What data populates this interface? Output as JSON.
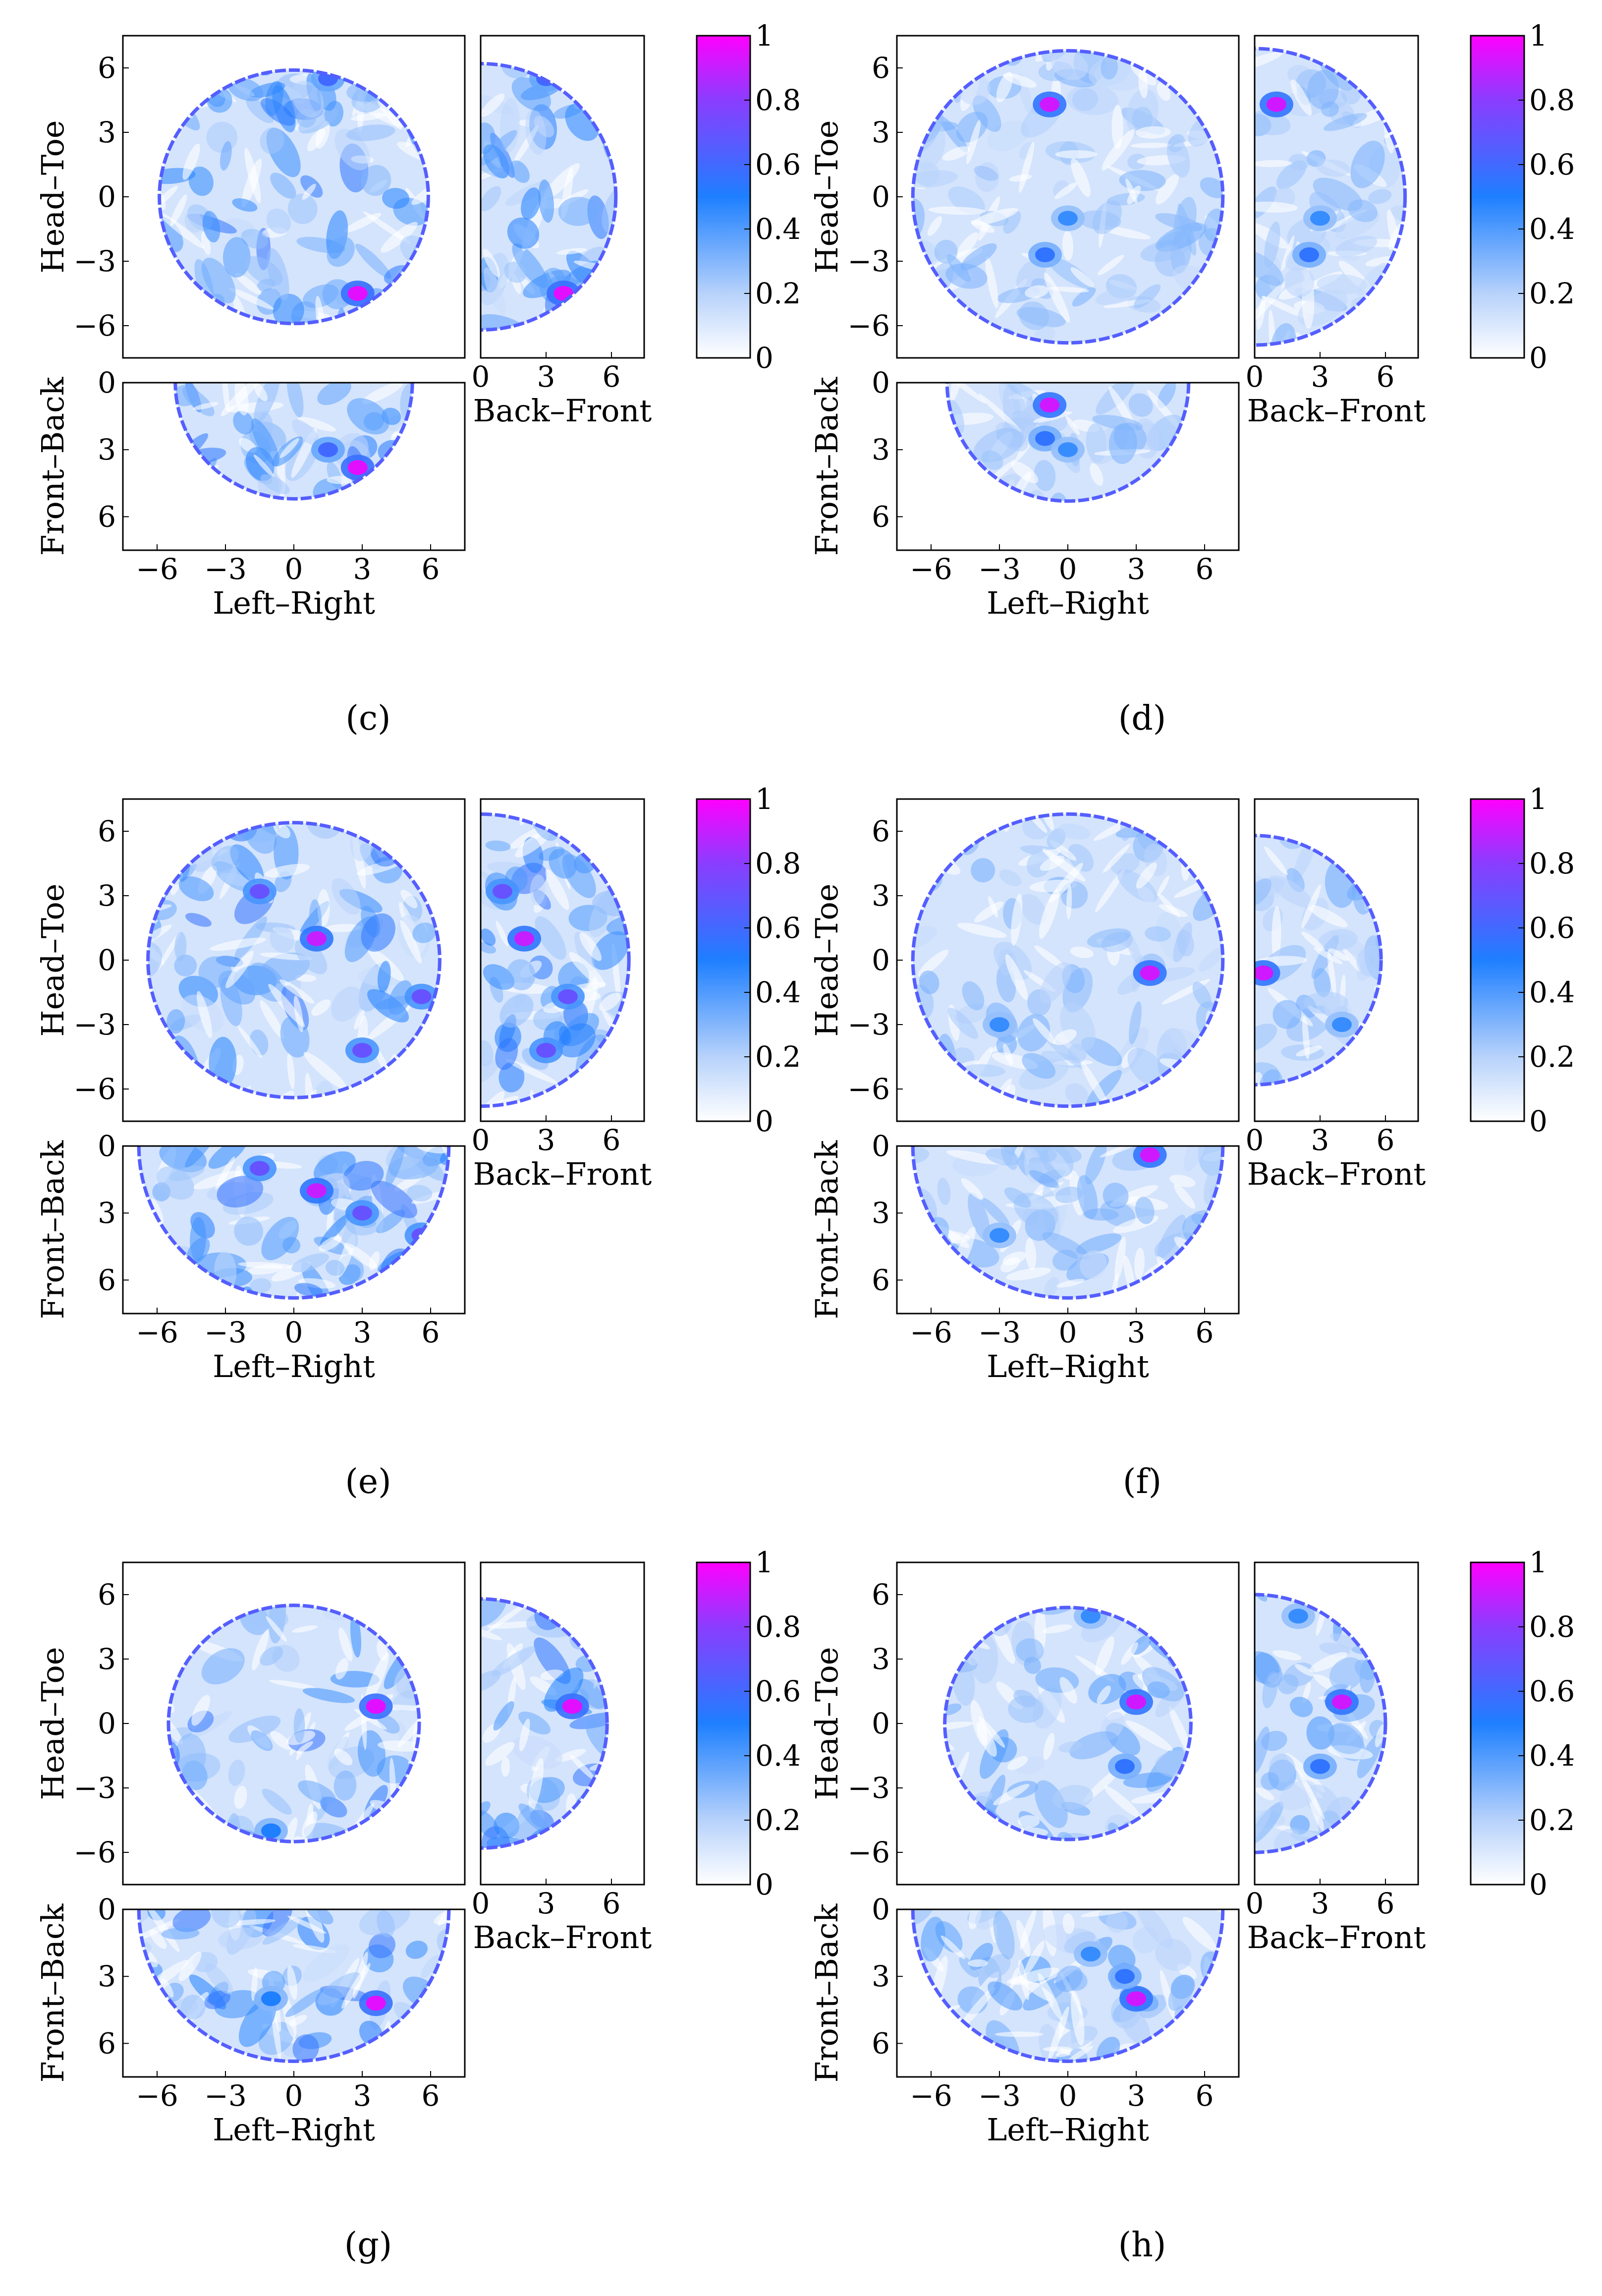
{
  "figure": {
    "colormap": {
      "stops": [
        {
          "v": 0.0,
          "color": "#ffffff"
        },
        {
          "v": 0.2,
          "color": "#b7d2fb"
        },
        {
          "v": 0.5,
          "color": "#1e7fff"
        },
        {
          "v": 0.8,
          "color": "#8a3dff"
        },
        {
          "v": 1.0,
          "color": "#ff00ff"
        }
      ],
      "ticks": [
        "0",
        "0.2",
        "0.4",
        "0.6",
        "0.8",
        "1"
      ]
    },
    "axis_labels": {
      "head_toe": "Head–Toe",
      "back_front": "Back–Front",
      "front_back": "Front–Back",
      "left_right": "Left–Right"
    },
    "tick_labels": {
      "head_toe": [
        "6",
        "3",
        "0",
        "−3",
        "−6"
      ],
      "back_front": [
        "0",
        "3",
        "6"
      ],
      "front_back": [
        "0",
        "3",
        "6"
      ],
      "left_right": [
        "−6",
        "−3",
        "0",
        "3",
        "6"
      ]
    }
  },
  "chart_data": [
    {
      "type": "heatmap",
      "caption": "(c)",
      "views": [
        "axial (Left–Right vs Head–Toe)",
        "sagittal (Back–Front vs Head–Toe)",
        "coronal (Left–Right vs Front–Back)"
      ],
      "axes": {
        "left_right": [
          -7.5,
          7.5
        ],
        "head_toe": [
          -7.5,
          7.5
        ],
        "back_front": [
          0,
          7.5
        ],
        "front_back": [
          0,
          7.5
        ]
      },
      "clim": [
        0,
        1
      ],
      "radii": {
        "axial": 5.9,
        "sagittal": 6.2,
        "coronal": 5.2
      },
      "noise_level": 0.42,
      "hotspots": [
        {
          "lr": 2.8,
          "ht": -4.5,
          "fb": 3.8,
          "value": 0.95
        },
        {
          "lr": 1.5,
          "ht": 5.5,
          "fb": 3.0,
          "value": 0.6
        }
      ]
    },
    {
      "type": "heatmap",
      "caption": "(d)",
      "views": [
        "axial (Left–Right vs Head–Toe)",
        "sagittal (Back–Front vs Head–Toe)",
        "coronal (Left–Right vs Front–Back)"
      ],
      "axes": {
        "left_right": [
          -7.5,
          7.5
        ],
        "head_toe": [
          -7.5,
          7.5
        ],
        "back_front": [
          0,
          7.5
        ],
        "front_back": [
          0,
          7.5
        ]
      },
      "clim": [
        0,
        1
      ],
      "radii": {
        "axial": 6.8,
        "sagittal": 6.9,
        "coronal": 5.3
      },
      "noise_level": 0.18,
      "hotspots": [
        {
          "lr": -0.8,
          "ht": 4.3,
          "fb": 1.0,
          "value": 0.92
        },
        {
          "lr": -1.0,
          "ht": -2.7,
          "fb": 2.5,
          "value": 0.55
        },
        {
          "lr": 0.0,
          "ht": -1.0,
          "fb": 3.0,
          "value": 0.45
        }
      ]
    },
    {
      "type": "heatmap",
      "caption": "(e)",
      "views": [
        "axial (Left–Right vs Head–Toe)",
        "sagittal (Back–Front vs Head–Toe)",
        "coronal (Left–Right vs Front–Back)"
      ],
      "axes": {
        "left_right": [
          -7.5,
          7.5
        ],
        "head_toe": [
          -7.5,
          7.5
        ],
        "back_front": [
          0,
          7.5
        ],
        "front_back": [
          0,
          7.5
        ]
      },
      "clim": [
        0,
        1
      ],
      "radii": {
        "axial": 6.4,
        "sagittal": 6.8,
        "coronal": 6.8
      },
      "noise_level": 0.42,
      "hotspots": [
        {
          "lr": 1.0,
          "ht": 1.0,
          "fb": 2.0,
          "value": 0.9
        },
        {
          "lr": -1.5,
          "ht": 3.2,
          "fb": 1.0,
          "value": 0.7
        },
        {
          "lr": 3.0,
          "ht": -4.2,
          "fb": 3.0,
          "value": 0.7
        },
        {
          "lr": 5.6,
          "ht": -1.7,
          "fb": 4.0,
          "value": 0.7
        }
      ]
    },
    {
      "type": "heatmap",
      "caption": "(f)",
      "views": [
        "axial (Left–Right vs Head–Toe)",
        "sagittal (Back–Front vs Head–Toe)",
        "coronal (Left–Right vs Front–Back)"
      ],
      "axes": {
        "left_right": [
          -7.5,
          7.5
        ],
        "head_toe": [
          -7.5,
          7.5
        ],
        "back_front": [
          0,
          7.5
        ],
        "front_back": [
          0,
          7.5
        ]
      },
      "clim": [
        0,
        1
      ],
      "radii": {
        "axial": 6.8,
        "sagittal": 5.8,
        "coronal": 6.8
      },
      "noise_level": 0.2,
      "hotspots": [
        {
          "lr": 3.6,
          "ht": -0.6,
          "fb": 0.4,
          "value": 0.92
        },
        {
          "lr": -3.0,
          "ht": -3.0,
          "fb": 4.0,
          "value": 0.45
        }
      ]
    },
    {
      "type": "heatmap",
      "caption": "(g)",
      "views": [
        "axial (Left–Right vs Head–Toe)",
        "sagittal (Back–Front vs Head–Toe)",
        "coronal (Left–Right vs Front–Back)"
      ],
      "axes": {
        "left_right": [
          -7.5,
          7.5
        ],
        "head_toe": [
          -7.5,
          7.5
        ],
        "back_front": [
          0,
          7.5
        ],
        "front_back": [
          0,
          7.5
        ]
      },
      "clim": [
        0,
        1
      ],
      "radii": {
        "axial": 5.5,
        "sagittal": 5.8,
        "coronal": 6.8
      },
      "noise_level": 0.42,
      "hotspots": [
        {
          "lr": 3.6,
          "ht": 0.8,
          "fb": 4.2,
          "value": 0.95
        },
        {
          "lr": -1.0,
          "ht": -5.0,
          "fb": 4.0,
          "value": 0.5
        }
      ]
    },
    {
      "type": "heatmap",
      "caption": "(h)",
      "views": [
        "axial (Left–Right vs Head–Toe)",
        "sagittal (Back–Front vs Head–Toe)",
        "coronal (Left–Right vs Front–Back)"
      ],
      "axes": {
        "left_right": [
          -7.5,
          7.5
        ],
        "head_toe": [
          -7.5,
          7.5
        ],
        "back_front": [
          0,
          7.5
        ],
        "front_back": [
          0,
          7.5
        ]
      },
      "clim": [
        0,
        1
      ],
      "radii": {
        "axial": 5.4,
        "sagittal": 6.0,
        "coronal": 6.8
      },
      "noise_level": 0.28,
      "hotspots": [
        {
          "lr": 3.0,
          "ht": 1.0,
          "fb": 4.0,
          "value": 0.92
        },
        {
          "lr": 2.5,
          "ht": -2.0,
          "fb": 3.0,
          "value": 0.55
        },
        {
          "lr": 1.0,
          "ht": 5.0,
          "fb": 2.0,
          "value": 0.45
        }
      ]
    }
  ]
}
